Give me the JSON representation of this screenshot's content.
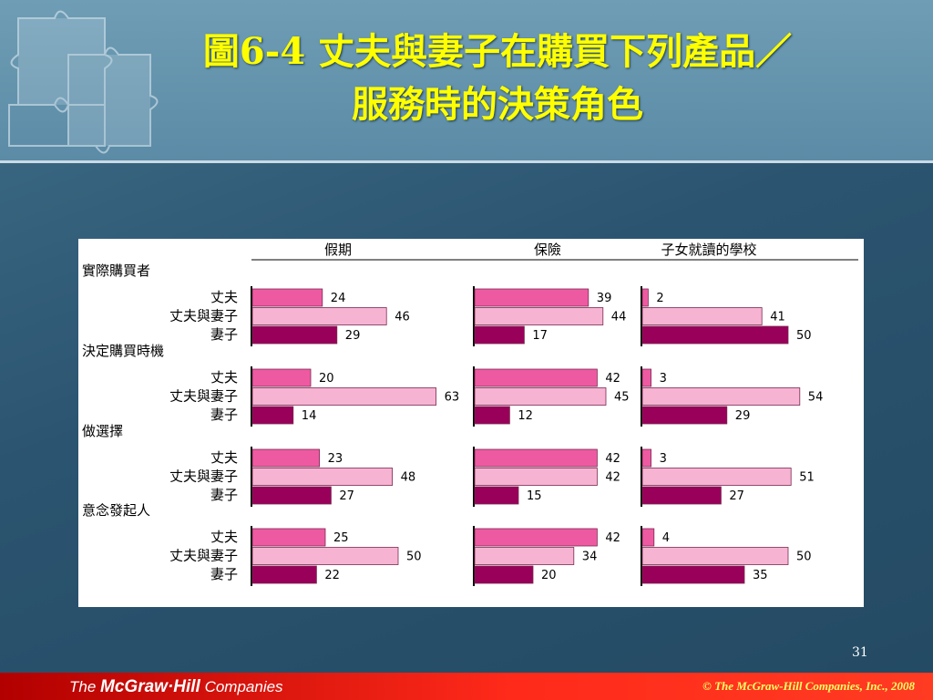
{
  "slide": {
    "title_line1": "圖6-4 丈夫與妻子在購買下列產品／",
    "title_line2": "服務時的決策角色",
    "page_number": "31",
    "footer_logo_prefix": "The ",
    "footer_logo_brand": "McGraw·Hill",
    "footer_logo_suffix": " Companies",
    "copyright": "© The McGraw-Hill Companies, Inc., 2008"
  },
  "colors": {
    "husband": "#ee5aa2",
    "joint": "#f6b3d2",
    "wife": "#99005a"
  },
  "chart_data": {
    "type": "bar",
    "orientation": "horizontal",
    "panels": [
      "假期",
      "保險",
      "子女就讀的學校"
    ],
    "groups": [
      "實際購買者",
      "決定購買時機",
      "做選擇",
      "意念發起人"
    ],
    "series_names": [
      "丈夫",
      "丈夫與妻子",
      "妻子"
    ],
    "values": {
      "假期": [
        [
          24,
          46,
          29
        ],
        [
          20,
          63,
          14
        ],
        [
          23,
          48,
          27
        ],
        [
          25,
          50,
          22
        ]
      ],
      "保險": [
        [
          39,
          44,
          17
        ],
        [
          42,
          45,
          12
        ],
        [
          42,
          42,
          15
        ],
        [
          42,
          34,
          20
        ]
      ],
      "子女就讀的學校": [
        [
          2,
          41,
          50
        ],
        [
          3,
          54,
          29
        ],
        [
          3,
          51,
          27
        ],
        [
          4,
          50,
          35
        ]
      ]
    }
  }
}
